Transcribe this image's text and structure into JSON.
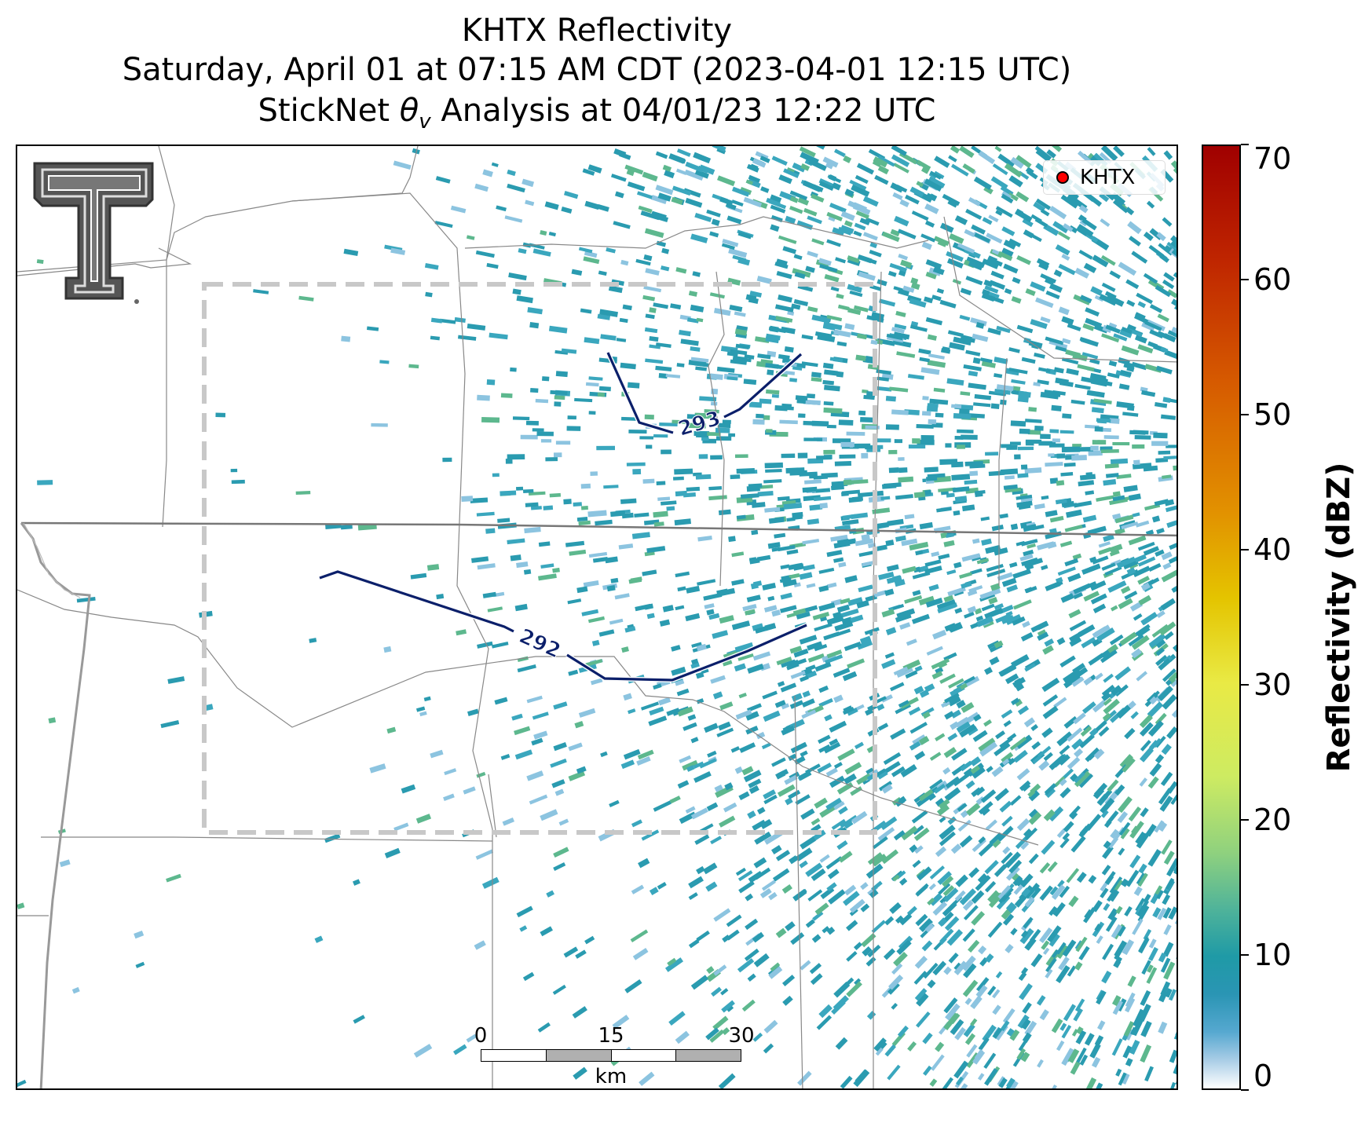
{
  "title": {
    "line1": "KHTX Reflectivity",
    "line2": "Saturday, April 01 at 07:15 AM CDT (2023-04-01 12:15 UTC)",
    "line3_prefix": "StickNet ",
    "line3_symbol": "θ",
    "line3_subscript": "v",
    "line3_suffix": " Analysis at 04/01/23 12:22 UTC"
  },
  "legend": {
    "label": "KHTX",
    "marker_color": "#ff0000"
  },
  "contours": [
    {
      "label": "293",
      "color": "#0b1f6a"
    },
    {
      "label": "292",
      "color": "#0b1f6a"
    }
  ],
  "scale_bar": {
    "ticks": [
      "0",
      "15",
      "30"
    ],
    "unit": "km"
  },
  "colorbar": {
    "label": "Reflectivity (dBZ)",
    "ticks": [
      "0",
      "10",
      "20",
      "30",
      "40",
      "50",
      "60",
      "70"
    ],
    "range": [
      0,
      70
    ]
  },
  "colors": {
    "echo_main": "#2a9bb0",
    "echo_light": "#8cc4e0",
    "echo_green": "#5db88e",
    "analysis_box": "#c8c8c8",
    "contour": "#0b1f6a"
  }
}
